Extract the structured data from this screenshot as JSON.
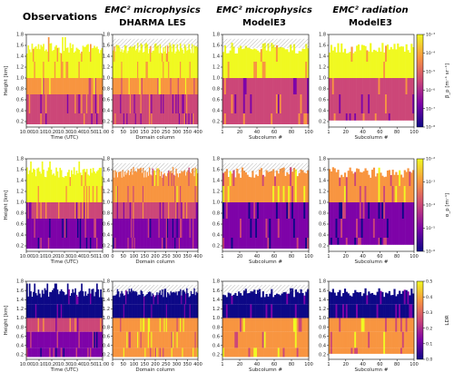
{
  "column_titles": [
    {
      "line1": "Observations",
      "line2": ""
    },
    {
      "line1": "EMC² microphysics",
      "line2": "DHARMA LES"
    },
    {
      "line1": "EMC² microphysics",
      "line2": "ModelE3"
    },
    {
      "line1": "EMC² radiation",
      "line2": "ModelE3"
    }
  ],
  "colors": {
    "low": "#0d0887",
    "mid1": "#7e03a8",
    "mid2": "#cc4778",
    "mid3": "#f89540",
    "high": "#f0f921",
    "hatch": "#999999"
  },
  "chart_data": [
    {
      "type": "heatmap",
      "panels": [
        {
          "id": "obs",
          "ylabel": "Height [km]",
          "xlabel": "Time (UTC)",
          "xticks": [
            "10:00",
            "10:10",
            "10:20",
            "10:30",
            "10:40",
            "10:50",
            "11:00"
          ]
        },
        {
          "id": "les",
          "ylabel": "",
          "xlabel": "Domain column",
          "xticks": [
            "0",
            "50",
            "100",
            "150",
            "200",
            "250",
            "300",
            "350",
            "400"
          ]
        },
        {
          "id": "e3mic",
          "ylabel": "",
          "xlabel": "Subcolumn #",
          "xticks": [
            "1",
            "20",
            "40",
            "60",
            "80",
            "100"
          ]
        },
        {
          "id": "e3rad",
          "ylabel": "",
          "xlabel": "Subcolumn #",
          "xticks": [
            "1",
            "20",
            "40",
            "60",
            "80",
            "100"
          ]
        }
      ],
      "yticks": [
        "0.2",
        "0.4",
        "0.6",
        "0.8",
        "1.0",
        "1.2",
        "1.4",
        "1.6",
        "1.8"
      ],
      "ylim": [
        0.1,
        1.8
      ],
      "colorbar": {
        "label": "β_p [m⁻¹ sr⁻¹]",
        "ticks": [
          "10⁻⁸",
          "10⁻⁷",
          "10⁻⁶",
          "10⁻⁵",
          "10⁻⁴",
          "10⁻³"
        ],
        "scale": "log"
      }
    },
    {
      "type": "heatmap",
      "panels": [
        {
          "id": "obs",
          "ylabel": "Height [km]",
          "xlabel": "Time (UTC)",
          "xticks": [
            "10:00",
            "10:10",
            "10:20",
            "10:30",
            "10:40",
            "10:50",
            "11:00"
          ]
        },
        {
          "id": "les",
          "ylabel": "",
          "xlabel": "Domain column",
          "xticks": [
            "0",
            "50",
            "100",
            "150",
            "200",
            "250",
            "300",
            "350",
            "400"
          ]
        },
        {
          "id": "e3mic",
          "ylabel": "",
          "xlabel": "Subcolumn #",
          "xticks": [
            "1",
            "20",
            "40",
            "60",
            "80",
            "100"
          ]
        },
        {
          "id": "e3rad",
          "ylabel": "",
          "xlabel": "Subcolumn #",
          "xticks": [
            "1",
            "20",
            "40",
            "60",
            "80",
            "100"
          ]
        }
      ],
      "yticks": [
        "0.2",
        "0.4",
        "0.6",
        "0.8",
        "1.0",
        "1.2",
        "1.4",
        "1.6",
        "1.8"
      ],
      "ylim": [
        0.1,
        1.8
      ],
      "colorbar": {
        "label": "α_p [m⁻¹]",
        "ticks": [
          "10⁻⁶",
          "10⁻⁵",
          "10⁻⁴",
          "10⁻³",
          "10⁻²"
        ],
        "scale": "log"
      }
    },
    {
      "type": "heatmap",
      "panels": [
        {
          "id": "obs",
          "ylabel": "Height [km]",
          "xlabel": "Time (UTC)",
          "xticks": [
            "10:00",
            "10:10",
            "10:20",
            "10:30",
            "10:40",
            "10:50",
            "11:00"
          ]
        },
        {
          "id": "les",
          "ylabel": "",
          "xlabel": "Domain column",
          "xticks": [
            "0",
            "50",
            "100",
            "150",
            "200",
            "250",
            "300",
            "350",
            "400"
          ]
        },
        {
          "id": "e3mic",
          "ylabel": "",
          "xlabel": "Subcolumn #",
          "xticks": [
            "1",
            "20",
            "40",
            "60",
            "80",
            "100"
          ]
        },
        {
          "id": "e3rad",
          "ylabel": "",
          "xlabel": "Subcolumn #",
          "xticks": [
            "1",
            "20",
            "40",
            "60",
            "80",
            "100"
          ]
        }
      ],
      "yticks": [
        "0.2",
        "0.4",
        "0.6",
        "0.8",
        "1.0",
        "1.2",
        "1.4",
        "1.6",
        "1.8"
      ],
      "ylim": [
        0.1,
        1.8
      ],
      "colorbar": {
        "label": "LDR",
        "ticks": [
          "0.0",
          "0.1",
          "0.2",
          "0.3",
          "0.4",
          "0.5"
        ],
        "scale": "linear"
      }
    }
  ]
}
